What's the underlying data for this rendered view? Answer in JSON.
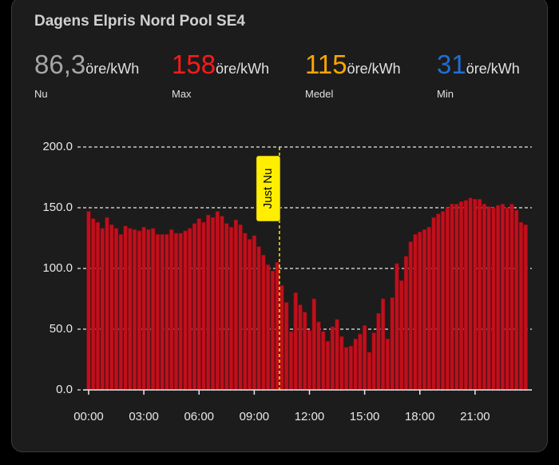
{
  "title": "Dagens Elpris Nord Pool SE4",
  "stats": [
    {
      "value": "86,3",
      "unit": "öre/kWh",
      "label": "Nu",
      "color": "#a6a6a6"
    },
    {
      "value": "158",
      "unit": "öre/kWh",
      "label": "Max",
      "color": "#ff1a1a"
    },
    {
      "value": "115",
      "unit": "öre/kWh",
      "label": "Medel",
      "color": "#ffa600"
    },
    {
      "value": "31",
      "unit": "öre/kWh",
      "label": "Min",
      "color": "#1e6fd6"
    }
  ],
  "chart_data": {
    "type": "bar",
    "x": [
      0,
      0.25,
      0.5,
      0.75,
      1,
      1.25,
      1.5,
      1.75,
      2,
      2.25,
      2.5,
      2.75,
      3,
      3.25,
      3.5,
      3.75,
      4,
      4.25,
      4.5,
      4.75,
      5,
      5.25,
      5.5,
      5.75,
      6,
      6.25,
      6.5,
      6.75,
      7,
      7.25,
      7.5,
      7.75,
      8,
      8.25,
      8.5,
      8.75,
      9,
      9.25,
      9.5,
      9.75,
      10,
      10.25,
      10.5,
      10.75,
      11,
      11.25,
      11.5,
      11.75,
      12,
      12.25,
      12.5,
      12.75,
      13,
      13.25,
      13.5,
      13.75,
      14,
      14.25,
      14.5,
      14.75,
      15,
      15.25,
      15.5,
      15.75,
      16,
      16.25,
      16.5,
      16.75,
      17,
      17.25,
      17.5,
      17.75,
      18,
      18.25,
      18.5,
      18.75,
      19,
      19.25,
      19.5,
      19.75,
      20,
      20.25,
      20.5,
      20.75,
      21,
      21.25,
      21.5,
      21.75,
      22,
      22.25,
      22.5,
      22.75,
      23,
      23.25,
      23.5,
      23.75
    ],
    "series": [
      {
        "color": "#c0101c",
        "values": [
          147,
          141,
          138,
          133,
          142,
          136,
          133,
          128,
          135,
          133,
          132,
          131,
          134,
          132,
          133,
          128,
          128,
          128,
          132,
          129,
          129,
          131,
          133,
          137,
          141,
          138,
          144,
          142,
          147,
          143,
          137,
          134,
          140,
          136,
          129,
          124,
          127,
          118,
          111,
          103,
          98,
          105,
          86,
          72,
          48,
          80,
          70,
          64,
          49,
          75,
          56,
          48,
          40,
          52,
          58,
          44,
          35,
          36,
          42,
          46,
          53,
          31,
          47,
          63,
          75,
          42,
          76,
          104,
          90,
          110,
          122,
          128,
          130,
          132,
          134,
          142,
          145,
          147,
          150,
          153,
          153,
          155,
          156,
          158,
          157,
          157,
          153,
          151,
          150,
          152,
          153,
          150,
          153,
          148,
          138,
          136
        ]
      }
    ],
    "xlim": [
      0,
      24
    ],
    "xticks": [
      {
        "value": 0,
        "label": "00:00"
      },
      {
        "value": 3,
        "label": "03:00"
      },
      {
        "value": 6,
        "label": "06:00"
      },
      {
        "value": 9,
        "label": "09:00"
      },
      {
        "value": 12,
        "label": "12:00"
      },
      {
        "value": 15,
        "label": "15:00"
      },
      {
        "value": 18,
        "label": "18:00"
      },
      {
        "value": 21,
        "label": "21:00"
      }
    ],
    "ylim": [
      0,
      200
    ],
    "yticks": [
      {
        "value": 0,
        "label": "0.0"
      },
      {
        "value": 50,
        "label": "50.0"
      },
      {
        "value": 100,
        "label": "100.0"
      },
      {
        "value": 150,
        "label": "150.0"
      },
      {
        "value": 200,
        "label": "200.0"
      }
    ],
    "grid": true,
    "annotations": [
      {
        "text": "Just Nu",
        "x": 10.37,
        "color": "#ffee00"
      }
    ]
  }
}
